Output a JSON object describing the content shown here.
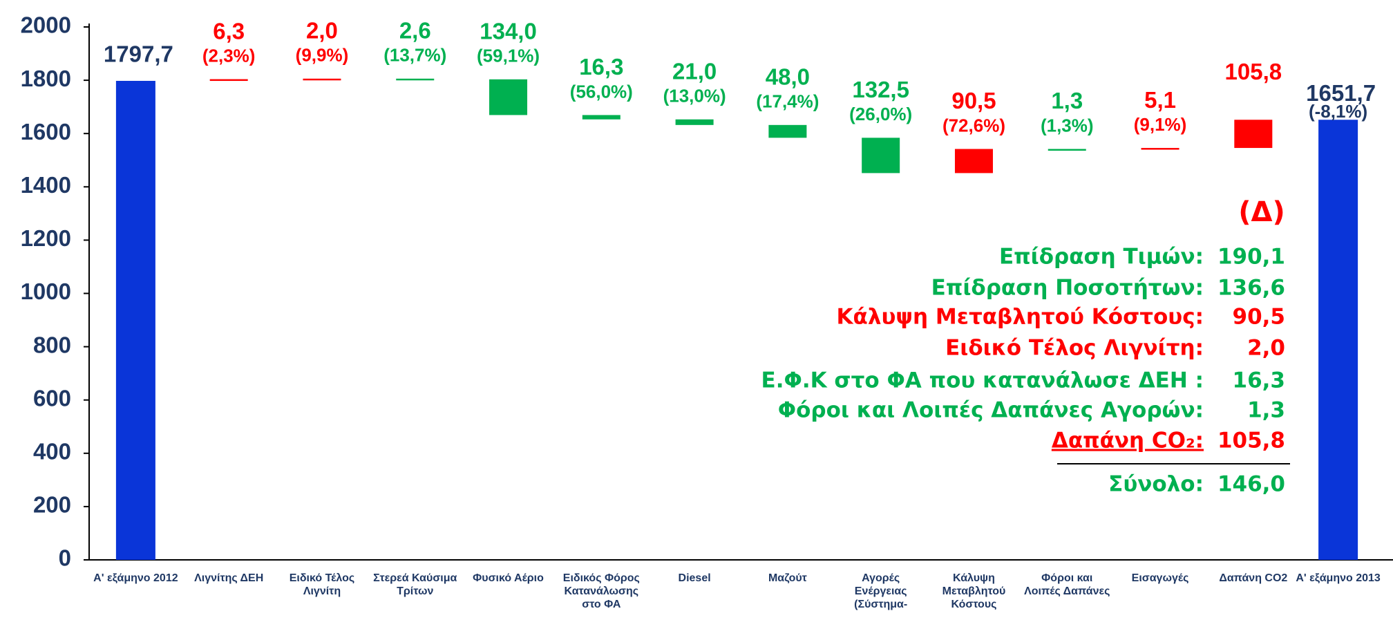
{
  "chart_data": {
    "type": "waterfall",
    "categories": [
      "Α' εξάμηνο 2012",
      "Λιγνίτης ΔΕΗ",
      "Ειδικό Τέλος Λιγνίτη",
      "Στερεά Καύσιμα Τρίτων",
      "Φυσικό Αέριο",
      "Ειδικός Φόρος Κατανάλωσης στο ΦΑ",
      "Diesel",
      "Μαζούτ",
      "Αγορές Ενέργειας (Σύστημα-",
      "Κάλυψη Μεταβλητού Κόστους",
      "Φόροι και Λοιπές Δαπάνες",
      "Εισαγωγές",
      "Δαπάνη CO2",
      "Α' εξάμηνο 2013"
    ],
    "values": [
      1797.7,
      6.3,
      2.0,
      -2.6,
      -134.0,
      -16.3,
      -21.0,
      -48.0,
      -132.5,
      90.5,
      -1.3,
      5.1,
      105.8,
      1651.7
    ],
    "value_labels": [
      "1797,7",
      "6,3",
      "2,0",
      "2,6",
      "134,0",
      "16,3",
      "21,0",
      "48,0",
      "132,5",
      "90,5",
      "1,3",
      "5,1",
      "105,8",
      "1651,7"
    ],
    "sublabels": [
      null,
      "(2,3%)",
      "(9,9%)",
      "(13,7%)",
      "(59,1%)",
      "(56,0%)",
      "(13,0%)",
      "(17,4%)",
      "(26,0%)",
      "(72,6%)",
      "(1,3%)",
      "(9,1%)",
      null,
      "(-8,1%)"
    ],
    "is_total": [
      true,
      false,
      false,
      false,
      false,
      false,
      false,
      false,
      false,
      false,
      false,
      false,
      false,
      true
    ],
    "colors": [
      "#0a35d8",
      "#ff0000",
      "#ff0000",
      "#00b050",
      "#00b050",
      "#00b050",
      "#00b050",
      "#00b050",
      "#00b050",
      "#ff0000",
      "#00b050",
      "#ff0000",
      "#ff0000",
      "#0a35d8"
    ],
    "ylim": [
      0,
      2000
    ],
    "yticks": [
      0,
      200,
      400,
      600,
      800,
      1000,
      1200,
      1400,
      1600,
      1800,
      2000
    ],
    "grid": false,
    "annotation": {
      "title": "(Δ)",
      "rows": [
        {
          "label": "Επίδραση Τιμών:",
          "value": 190.1,
          "value_label": "190,1",
          "color": "#00b050"
        },
        {
          "label": "Επίδραση Ποσοτήτων:",
          "value": 136.6,
          "value_label": "136,6",
          "color": "#00b050"
        },
        {
          "label": "Κάλυψη Μεταβλητού Κόστους:",
          "value": 90.5,
          "value_label": "90,5",
          "color": "#ff0000"
        },
        {
          "label": "Ειδικό Τέλος Λιγνίτη:",
          "value": 2.0,
          "value_label": "2,0",
          "color": "#ff0000"
        },
        {
          "label": "Ε.Φ.Κ στο ΦΑ που κατανάλωσε  ΔΕΗ :",
          "value": 16.3,
          "value_label": "16,3",
          "color": "#00b050"
        },
        {
          "label": "Φόροι και Λοιπές Δαπάνες Αγορών:",
          "value": 1.3,
          "value_label": "1,3",
          "color": "#00b050"
        },
        {
          "label": "Δαπάνη CO₂:",
          "value": 105.8,
          "value_label": "105,8",
          "color": "#ff0000"
        }
      ],
      "total": {
        "label": "Σύνολο:",
        "value": 146.0,
        "value_label": "146,0",
        "color": "#00b050"
      }
    }
  }
}
